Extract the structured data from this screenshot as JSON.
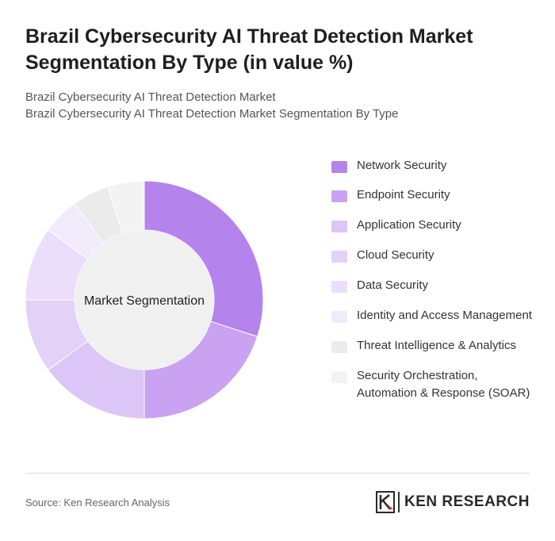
{
  "header": {
    "title": "Brazil Cybersecurity AI Threat Detection Market Segmentation By Type (in value %)",
    "subtitle_line1": "Brazil Cybersecurity AI Threat Detection Market",
    "subtitle_line2": "Brazil Cybersecurity AI Threat Detection Market Segmentation By Type"
  },
  "chart_data": {
    "type": "pie",
    "donut": true,
    "center_label": "Market Segmentation",
    "legend_position": "right",
    "categories": [
      "Network Security",
      "Endpoint Security",
      "Application Security",
      "Cloud Security",
      "Data Security",
      "Identity and Access Management",
      "Threat Intelligence & Analytics",
      "Security Orchestration, Automation & Response (SOAR)"
    ],
    "values": [
      30,
      20,
      15,
      10,
      10,
      5,
      5,
      5
    ],
    "colors": [
      "#b583ec",
      "#c9a3f2",
      "#dcc5f7",
      "#e3d1f8",
      "#ebdefa",
      "#f1eafb",
      "#ebebeb",
      "#f3f3f3"
    ]
  },
  "footer": {
    "source": "Source: Ken Research Analysis",
    "logo_text": "KEN RESEARCH"
  }
}
